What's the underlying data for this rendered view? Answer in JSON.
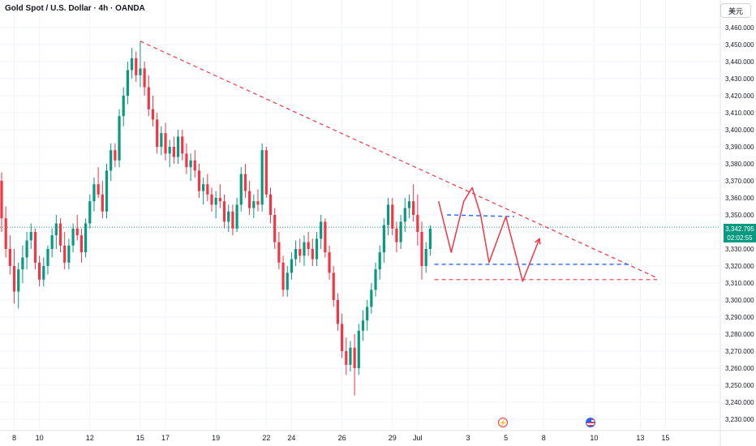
{
  "header": {
    "title": "Gold Spot / U.S. Dollar · 4h · OANDA",
    "currency_label": "美元"
  },
  "price_label": {
    "price": "3,342.795",
    "countdown": "02:02:55"
  },
  "colors": {
    "up": "#089981",
    "down": "#f23645",
    "annotation": "#f23645",
    "support": "#2962ff",
    "current_price": "#089981"
  },
  "events": [
    {
      "icon": "lightning-icon",
      "glyph": "⚡"
    },
    {
      "icon": "us-flag-icon",
      "glyph": ""
    }
  ],
  "chart_data": {
    "type": "candlestick",
    "timeframe": "4h",
    "symbol": "XAUUSD",
    "title": "Gold Spot / U.S. Dollar · 4h · OANDA",
    "ylim": [
      3225,
      3475
    ],
    "y_ticks": [
      "3,230.000",
      "3,240.000",
      "3,250.000",
      "3,260.000",
      "3,270.000",
      "3,280.000",
      "3,290.000",
      "3,300.000",
      "3,310.000",
      "3,320.000",
      "3,330.000",
      "3,340.000",
      "3,350.000",
      "3,360.000",
      "3,370.000",
      "3,380.000",
      "3,390.000",
      "3,400.000",
      "3,410.000",
      "3,420.000",
      "3,430.000",
      "3,440.000",
      "3,450.000",
      "3,460.000"
    ],
    "x_ticks": [
      {
        "label": "8",
        "index": 3
      },
      {
        "label": "10",
        "index": 9
      },
      {
        "label": "12",
        "index": 21
      },
      {
        "label": "15",
        "index": 33
      },
      {
        "label": "17",
        "index": 39
      },
      {
        "label": "19",
        "index": 51
      },
      {
        "label": "22",
        "index": 63
      },
      {
        "label": "24",
        "index": 69
      },
      {
        "label": "26",
        "index": 81
      },
      {
        "label": "29",
        "index": 93
      },
      {
        "label": "Jul",
        "index": 99
      },
      {
        "label": "3",
        "index": 111
      },
      {
        "label": "5",
        "index": 120
      },
      {
        "label": "8",
        "index": 129
      },
      {
        "label": "10",
        "index": 141
      },
      {
        "label": "13",
        "index": 152
      },
      {
        "label": "15",
        "index": 158
      }
    ],
    "current_price": 3342.795,
    "candles": [
      [
        3370,
        3375,
        3340,
        3348
      ],
      [
        3348,
        3355,
        3325,
        3330
      ],
      [
        3330,
        3338,
        3315,
        3320
      ],
      [
        3320,
        3330,
        3298,
        3305
      ],
      [
        3305,
        3322,
        3295,
        3318
      ],
      [
        3318,
        3332,
        3310,
        3325
      ],
      [
        3325,
        3340,
        3318,
        3335
      ],
      [
        3335,
        3345,
        3330,
        3340
      ],
      [
        3340,
        3342,
        3318,
        3322
      ],
      [
        3322,
        3326,
        3308,
        3312
      ],
      [
        3312,
        3325,
        3308,
        3320
      ],
      [
        3320,
        3332,
        3315,
        3330
      ],
      [
        3330,
        3342,
        3325,
        3338
      ],
      [
        3338,
        3350,
        3330,
        3345
      ],
      [
        3345,
        3348,
        3328,
        3332
      ],
      [
        3332,
        3340,
        3318,
        3322
      ],
      [
        3322,
        3336,
        3318,
        3332
      ],
      [
        3332,
        3345,
        3328,
        3342
      ],
      [
        3342,
        3350,
        3335,
        3338
      ],
      [
        3338,
        3342,
        3322,
        3328
      ],
      [
        3328,
        3348,
        3325,
        3345
      ],
      [
        3345,
        3362,
        3342,
        3358
      ],
      [
        3358,
        3372,
        3352,
        3368
      ],
      [
        3368,
        3378,
        3360,
        3362
      ],
      [
        3362,
        3370,
        3348,
        3352
      ],
      [
        3352,
        3380,
        3348,
        3376
      ],
      [
        3376,
        3392,
        3370,
        3388
      ],
      [
        3388,
        3392,
        3378,
        3382
      ],
      [
        3382,
        3412,
        3378,
        3408
      ],
      [
        3408,
        3425,
        3402,
        3420
      ],
      [
        3420,
        3440,
        3415,
        3435
      ],
      [
        3435,
        3448,
        3430,
        3442
      ],
      [
        3442,
        3446,
        3428,
        3432
      ],
      [
        3432,
        3452,
        3425,
        3436
      ],
      [
        3436,
        3440,
        3420,
        3425
      ],
      [
        3425,
        3432,
        3408,
        3412
      ],
      [
        3412,
        3420,
        3402,
        3406
      ],
      [
        3406,
        3410,
        3386,
        3390
      ],
      [
        3390,
        3402,
        3385,
        3398
      ],
      [
        3398,
        3404,
        3382,
        3386
      ],
      [
        3386,
        3394,
        3378,
        3390
      ],
      [
        3390,
        3396,
        3380,
        3384
      ],
      [
        3384,
        3400,
        3380,
        3396
      ],
      [
        3396,
        3400,
        3382,
        3386
      ],
      [
        3386,
        3392,
        3374,
        3378
      ],
      [
        3378,
        3386,
        3370,
        3382
      ],
      [
        3382,
        3388,
        3372,
        3376
      ],
      [
        3376,
        3380,
        3360,
        3364
      ],
      [
        3364,
        3372,
        3356,
        3368
      ],
      [
        3368,
        3374,
        3358,
        3362
      ],
      [
        3362,
        3366,
        3352,
        3356
      ],
      [
        3356,
        3364,
        3348,
        3360
      ],
      [
        3360,
        3368,
        3354,
        3358
      ],
      [
        3358,
        3362,
        3342,
        3346
      ],
      [
        3346,
        3356,
        3340,
        3352
      ],
      [
        3352,
        3356,
        3338,
        3342
      ],
      [
        3342,
        3360,
        3340,
        3356
      ],
      [
        3356,
        3378,
        3352,
        3374
      ],
      [
        3374,
        3380,
        3360,
        3364
      ],
      [
        3364,
        3370,
        3350,
        3354
      ],
      [
        3354,
        3362,
        3348,
        3358
      ],
      [
        3358,
        3365,
        3352,
        3356
      ],
      [
        3356,
        3392,
        3352,
        3388
      ],
      [
        3388,
        3390,
        3360,
        3362
      ],
      [
        3362,
        3366,
        3345,
        3350
      ],
      [
        3350,
        3354,
        3330,
        3334
      ],
      [
        3334,
        3340,
        3318,
        3322
      ],
      [
        3322,
        3326,
        3302,
        3306
      ],
      [
        3306,
        3320,
        3302,
        3316
      ],
      [
        3316,
        3328,
        3312,
        3324
      ],
      [
        3324,
        3335,
        3320,
        3330
      ],
      [
        3330,
        3336,
        3322,
        3326
      ],
      [
        3326,
        3338,
        3320,
        3334
      ],
      [
        3334,
        3340,
        3326,
        3330
      ],
      [
        3330,
        3336,
        3320,
        3324
      ],
      [
        3324,
        3340,
        3320,
        3336
      ],
      [
        3336,
        3350,
        3330,
        3346
      ],
      [
        3346,
        3348,
        3325,
        3328
      ],
      [
        3328,
        3332,
        3312,
        3316
      ],
      [
        3316,
        3320,
        3296,
        3300
      ],
      [
        3300,
        3304,
        3282,
        3286
      ],
      [
        3286,
        3292,
        3266,
        3270
      ],
      [
        3270,
        3278,
        3256,
        3262
      ],
      [
        3262,
        3276,
        3258,
        3272
      ],
      [
        3272,
        3280,
        3244,
        3260
      ],
      [
        3260,
        3286,
        3256,
        3282
      ],
      [
        3282,
        3294,
        3276,
        3288
      ],
      [
        3288,
        3300,
        3282,
        3296
      ],
      [
        3296,
        3310,
        3292,
        3306
      ],
      [
        3306,
        3322,
        3302,
        3318
      ],
      [
        3318,
        3332,
        3312,
        3328
      ],
      [
        3328,
        3348,
        3322,
        3344
      ],
      [
        3344,
        3360,
        3338,
        3356
      ],
      [
        3356,
        3360,
        3338,
        3342
      ],
      [
        3342,
        3346,
        3328,
        3334
      ],
      [
        3334,
        3350,
        3330,
        3346
      ],
      [
        3346,
        3360,
        3340,
        3354
      ],
      [
        3354,
        3362,
        3348,
        3358
      ],
      [
        3358,
        3368,
        3346,
        3350
      ],
      [
        3350,
        3362,
        3332,
        3340
      ],
      [
        3340,
        3346,
        3312,
        3320
      ],
      [
        3320,
        3334,
        3316,
        3330
      ],
      [
        3330,
        3344,
        3326,
        3342
      ]
    ],
    "annotations": {
      "descending_trendline": {
        "from": {
          "index": 33,
          "price": 3452
        },
        "to": {
          "index": 156,
          "price": 3313
        },
        "color": "#f23645",
        "style": "dashed"
      },
      "support_line": {
        "from": {
          "index": 103,
          "price": 3312
        },
        "to": {
          "index": 156,
          "price": 3312
        },
        "color": "#f23645",
        "style": "dashed"
      },
      "blue_level_upper": {
        "from": {
          "index": 106,
          "price": 3350
        },
        "to": {
          "index": 122,
          "price": 3349
        },
        "color": "#2962ff",
        "style": "dashed"
      },
      "blue_level_lower": {
        "from": {
          "index": 103,
          "price": 3321
        },
        "to": {
          "index": 150,
          "price": 3321
        },
        "color": "#2962ff",
        "style": "dashed"
      },
      "projection_path": [
        {
          "index": 104,
          "price": 3358
        },
        {
          "index": 107,
          "price": 3328
        },
        {
          "index": 110,
          "price": 3358
        },
        {
          "index": 112,
          "price": 3366
        },
        {
          "index": 114,
          "price": 3350
        },
        {
          "index": 116,
          "price": 3322
        },
        {
          "index": 120,
          "price": 3349
        },
        {
          "index": 124,
          "price": 3311
        },
        {
          "index": 128,
          "price": 3336
        }
      ]
    }
  }
}
